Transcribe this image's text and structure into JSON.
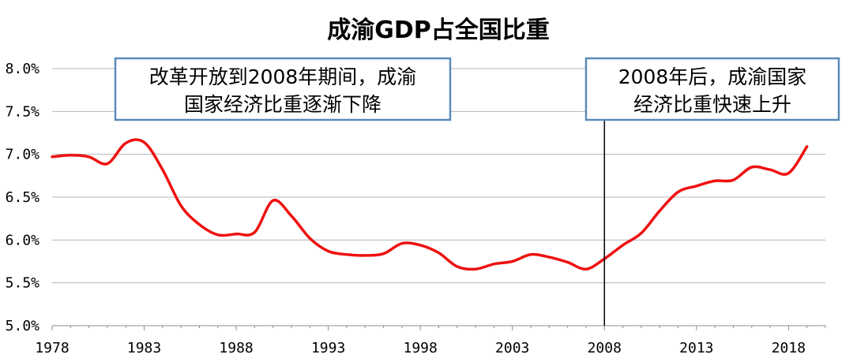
{
  "chart_data": {
    "type": "line",
    "title": "成渝GDP占全国比重",
    "xlabel": "",
    "ylabel": "",
    "x_ticks": [
      "1978",
      "1983",
      "1988",
      "1993",
      "1998",
      "2003",
      "2008",
      "2013",
      "2018"
    ],
    "y_ticks": [
      "5.0%",
      "5.5%",
      "6.0%",
      "6.5%",
      "7.0%",
      "7.5%",
      "8.0%"
    ],
    "xlim": [
      1978,
      2020
    ],
    "ylim": [
      5.0,
      8.0
    ],
    "grid": "horizontal",
    "series": [
      {
        "name": "",
        "color": "#ee1111",
        "x": [
          1978,
          1979,
          1980,
          1981,
          1982,
          1983,
          1984,
          1985,
          1986,
          1987,
          1988,
          1989,
          1990,
          1991,
          1992,
          1993,
          1994,
          1995,
          1996,
          1997,
          1998,
          1999,
          2000,
          2001,
          2002,
          2003,
          2004,
          2005,
          2006,
          2007,
          2008,
          2009,
          2010,
          2011,
          2012,
          2013,
          2014,
          2015,
          2016,
          2017,
          2018,
          2019
        ],
        "y": [
          6.97,
          6.99,
          6.97,
          6.89,
          7.13,
          7.14,
          6.82,
          6.4,
          6.18,
          6.06,
          6.07,
          6.09,
          6.46,
          6.28,
          6.02,
          5.87,
          5.83,
          5.82,
          5.84,
          5.96,
          5.94,
          5.85,
          5.69,
          5.66,
          5.72,
          5.75,
          5.83,
          5.8,
          5.74,
          5.66,
          5.78,
          5.94,
          6.08,
          6.34,
          6.56,
          6.63,
          6.69,
          6.7,
          6.85,
          6.82,
          6.78,
          7.09
        ]
      }
    ],
    "reference_line": {
      "x": 2008,
      "color": "#000000"
    },
    "annotations": [
      {
        "lines": [
          "改革开放到2008年期间，成渝",
          "国家经济比重逐渐下降"
        ]
      },
      {
        "lines": [
          "2008年后，成渝国家",
          "经济比重快速上升"
        ]
      }
    ]
  }
}
